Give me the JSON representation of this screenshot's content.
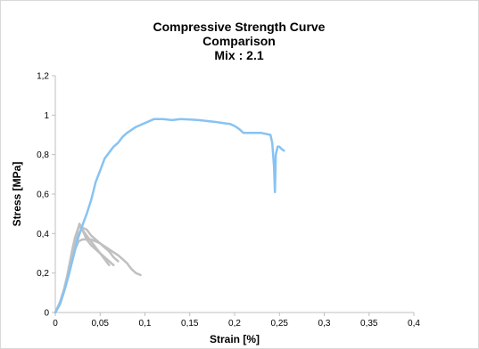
{
  "chart_data": {
    "type": "line",
    "title_lines": [
      "Compressive Strength Curve",
      "Comparison",
      "Mix : 2.1"
    ],
    "xlabel": "Strain  [%]",
    "ylabel": "Stress [MPa]",
    "xlim": [
      0,
      0.4
    ],
    "ylim": [
      0,
      1.2
    ],
    "x_ticks": [
      0,
      0.05,
      0.1,
      0.15,
      0.2,
      0.25,
      0.3,
      0.35,
      0.4
    ],
    "x_tick_labels": [
      "0",
      "0,05",
      "0,1",
      "0,15",
      "0,2",
      "0,25",
      "0,3",
      "0,35",
      "0,4"
    ],
    "y_ticks": [
      0,
      0.2,
      0.4,
      0.6,
      0.8,
      1.0,
      1.2
    ],
    "y_tick_labels": [
      "0",
      "0,2",
      "0,4",
      "0,6",
      "0,8",
      "1",
      "1,2"
    ],
    "grid": false,
    "legend": "none",
    "series": [
      {
        "color": "#c0c0c0",
        "x": [
          0,
          0.005,
          0.01,
          0.013,
          0.016,
          0.019,
          0.022,
          0.025,
          0.027,
          0.03,
          0.035,
          0.04,
          0.045,
          0.05,
          0.055,
          0.06
        ],
        "y": [
          0,
          0.05,
          0.12,
          0.18,
          0.25,
          0.32,
          0.38,
          0.42,
          0.44,
          0.42,
          0.39,
          0.36,
          0.33,
          0.3,
          0.27,
          0.24
        ]
      },
      {
        "color": "#c0c0c0",
        "x": [
          0,
          0.006,
          0.012,
          0.016,
          0.02,
          0.024,
          0.027,
          0.03,
          0.035,
          0.04,
          0.05,
          0.06,
          0.065
        ],
        "y": [
          0,
          0.06,
          0.15,
          0.24,
          0.32,
          0.4,
          0.45,
          0.42,
          0.37,
          0.34,
          0.3,
          0.26,
          0.24
        ]
      },
      {
        "color": "#c0c0c0",
        "x": [
          0,
          0.005,
          0.01,
          0.015,
          0.02,
          0.025,
          0.03,
          0.035,
          0.04,
          0.045,
          0.05,
          0.055,
          0.06,
          0.065,
          0.07
        ],
        "y": [
          0,
          0.04,
          0.12,
          0.22,
          0.32,
          0.39,
          0.43,
          0.42,
          0.39,
          0.37,
          0.35,
          0.33,
          0.31,
          0.28,
          0.26
        ]
      },
      {
        "color": "#c0c0c0",
        "x": [
          0,
          0.006,
          0.012,
          0.018,
          0.022,
          0.026,
          0.03,
          0.04,
          0.05,
          0.06,
          0.07,
          0.075,
          0.08,
          0.085,
          0.09,
          0.095
        ],
        "y": [
          0,
          0.05,
          0.14,
          0.25,
          0.32,
          0.36,
          0.37,
          0.37,
          0.35,
          0.32,
          0.29,
          0.27,
          0.25,
          0.22,
          0.2,
          0.19
        ]
      },
      {
        "color": "#87c3f3",
        "x": [
          0,
          0.005,
          0.01,
          0.015,
          0.02,
          0.025,
          0.03,
          0.035,
          0.04,
          0.045,
          0.05,
          0.055,
          0.06,
          0.065,
          0.07,
          0.075,
          0.08,
          0.09,
          0.1,
          0.105,
          0.11,
          0.12,
          0.13,
          0.14,
          0.15,
          0.16,
          0.17,
          0.18,
          0.19,
          0.195,
          0.2,
          0.205,
          0.21,
          0.22,
          0.23,
          0.24,
          0.242,
          0.244,
          0.245,
          0.246,
          0.248,
          0.25,
          0.252,
          0.255
        ],
        "y": [
          0,
          0.04,
          0.11,
          0.19,
          0.28,
          0.37,
          0.44,
          0.5,
          0.57,
          0.66,
          0.72,
          0.78,
          0.81,
          0.84,
          0.86,
          0.89,
          0.91,
          0.94,
          0.96,
          0.97,
          0.98,
          0.98,
          0.975,
          0.98,
          0.978,
          0.975,
          0.97,
          0.965,
          0.958,
          0.955,
          0.945,
          0.93,
          0.91,
          0.91,
          0.91,
          0.9,
          0.86,
          0.74,
          0.61,
          0.8,
          0.84,
          0.84,
          0.83,
          0.82
        ]
      }
    ]
  }
}
